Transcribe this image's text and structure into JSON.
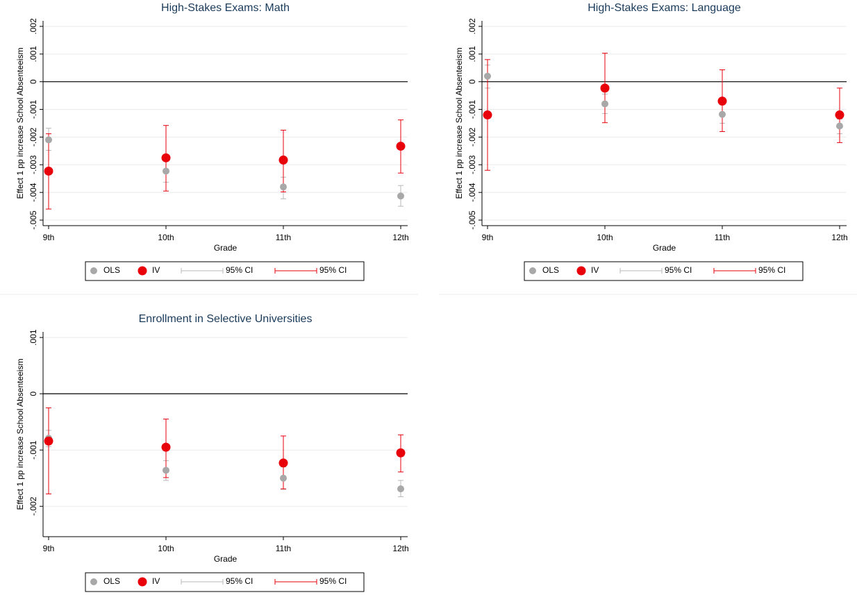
{
  "chart_data": [
    {
      "type": "point-ci",
      "title": "High-Stakes Exams: Math",
      "x_label": "Grade",
      "y_label": "Effect 1 pp increase School Absenteeism",
      "categories": [
        "9th",
        "10th",
        "11th",
        "12th"
      ],
      "ylim": [
        -0.0052,
        0.0022
      ],
      "yticks": [
        {
          "value": -0.005,
          "label": "-.005"
        },
        {
          "value": -0.004,
          "label": "-.004"
        },
        {
          "value": -0.003,
          "label": "-.003"
        },
        {
          "value": -0.002,
          "label": "-.002"
        },
        {
          "value": -0.001,
          "label": "-.001"
        },
        0,
        {
          "value": 0.001,
          "label": ".001"
        },
        {
          "value": 0.002,
          "label": ".002"
        }
      ],
      "grid": true,
      "reference_line": 0,
      "series": [
        {
          "name": "OLS",
          "color": "#a8a8a8",
          "ci_name": "95% CI",
          "ci_color": "#b8b8b8",
          "values": [
            -0.0021,
            -0.00323,
            -0.0038,
            -0.00413
          ],
          "ci_low": [
            -0.00248,
            -0.00363,
            -0.00423,
            -0.0045
          ],
          "ci_high": [
            -0.00168,
            -0.00285,
            -0.00345,
            -0.00375
          ]
        },
        {
          "name": "IV",
          "color": "#e8000b",
          "ci_name": "95% CI",
          "ci_color": "#e8000b",
          "values": [
            -0.00323,
            -0.00275,
            -0.00283,
            -0.00233
          ],
          "ci_low": [
            -0.0046,
            -0.00395,
            -0.00398,
            -0.0033
          ],
          "ci_high": [
            -0.00188,
            -0.00158,
            -0.00175,
            -0.00138
          ]
        }
      ]
    },
    {
      "type": "point-ci",
      "title": "High-Stakes Exams: Language",
      "x_label": "Grade",
      "y_label": "Effect 1 pp increase School Absenteeism",
      "categories": [
        "9th",
        "10th",
        "11th",
        "12th"
      ],
      "ylim": [
        -0.0052,
        0.0022
      ],
      "yticks": [
        {
          "value": -0.005,
          "label": "-.005"
        },
        {
          "value": -0.004,
          "label": "-.004"
        },
        {
          "value": -0.003,
          "label": "-.003"
        },
        {
          "value": -0.002,
          "label": "-.002"
        },
        {
          "value": -0.001,
          "label": "-.001"
        },
        0,
        {
          "value": 0.001,
          "label": ".001"
        },
        {
          "value": 0.002,
          "label": ".002"
        }
      ],
      "grid": true,
      "reference_line": 0,
      "series": [
        {
          "name": "OLS",
          "color": "#a8a8a8",
          "ci_name": "95% CI",
          "ci_color": "#b8b8b8",
          "values": [
            0.0002,
            -0.0008,
            -0.00118,
            -0.0016
          ],
          "ci_low": [
            -0.00023,
            -0.00115,
            -0.0015,
            -0.00188
          ],
          "ci_high": [
            0.0006,
            -0.00045,
            -0.0008,
            -0.00135
          ]
        },
        {
          "name": "IV",
          "color": "#e8000b",
          "ci_name": "95% CI",
          "ci_color": "#e8000b",
          "values": [
            -0.0012,
            -0.00023,
            -0.0007,
            -0.0012
          ],
          "ci_low": [
            -0.0032,
            -0.00148,
            -0.0018,
            -0.0022
          ],
          "ci_high": [
            0.0008,
            0.00103,
            0.00043,
            -0.00023
          ]
        }
      ]
    },
    {
      "type": "point-ci",
      "title": "Enrollment in Selective Universities",
      "x_label": "Grade",
      "y_label": "Effect 1 pp increase School Absenteeism",
      "categories": [
        "9th",
        "10th",
        "11th",
        "12th"
      ],
      "ylim": [
        -0.00254,
        0.0011
      ],
      "yticks": [
        {
          "value": -0.002,
          "label": "-.002"
        },
        {
          "value": -0.001,
          "label": "-.001"
        },
        0,
        {
          "value": 0.001,
          "label": ".001"
        }
      ],
      "grid": true,
      "reference_line": 0,
      "series": [
        {
          "name": "OLS",
          "color": "#a8a8a8",
          "ci_name": "95% CI",
          "ci_color": "#b8b8b8",
          "values": [
            -0.00079,
            -0.00136,
            -0.0015,
            -0.00169
          ],
          "ci_low": [
            -0.00094,
            -0.00154,
            -0.0017,
            -0.00183
          ],
          "ci_high": [
            -0.00065,
            -0.00119,
            -0.0013,
            -0.00154
          ]
        },
        {
          "name": "IV",
          "color": "#e8000b",
          "ci_name": "95% CI",
          "ci_color": "#e8000b",
          "values": [
            -0.00084,
            -0.00095,
            -0.00123,
            -0.00105
          ],
          "ci_low": [
            -0.00178,
            -0.00149,
            -0.00169,
            -0.00139
          ],
          "ci_high": [
            -0.00025,
            -0.00045,
            -0.00075,
            -0.00073
          ]
        }
      ]
    }
  ]
}
